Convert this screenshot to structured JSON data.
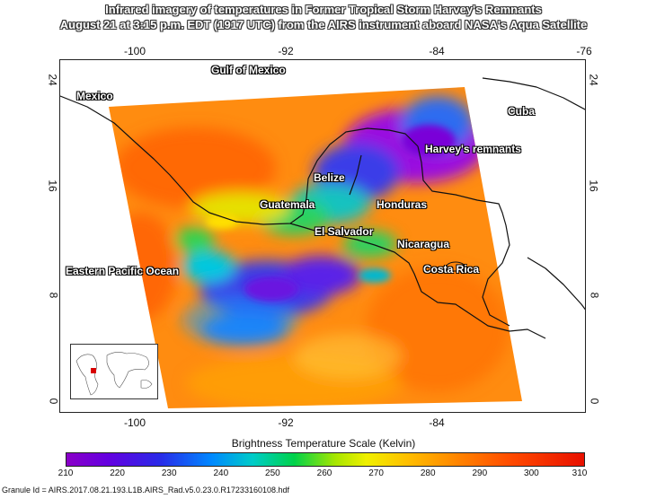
{
  "title": {
    "line1": "Infrared imagery of temperatures in Former Tropical Storm Harvey's Remnants",
    "line2": "August 21 at  3:15 p.m. EDT  (1917 UTC) from the AIRS instrument aboard NASA's Aqua Satellite"
  },
  "axes": {
    "top_lon_ticks": [
      "-100",
      "-92",
      "-84",
      "-76"
    ],
    "bottom_lon_ticks": [
      "-100",
      "-92",
      "-84"
    ],
    "left_lat_ticks": [
      "24",
      "16",
      "8",
      "0"
    ],
    "right_lat_ticks": [
      "24",
      "16",
      "8",
      "0"
    ]
  },
  "labels": {
    "gulf": "Gulf of Mexico",
    "mexico": "Mexico",
    "cuba": "Cuba",
    "harvey": "Harvey's remnants",
    "belize": "Belize",
    "guatemala": "Guatemala",
    "honduras": "Honduras",
    "el_salvador": "El Salvador",
    "nicaragua": "Nicaragua",
    "costa_rica": "Costa Rica",
    "pacific": "Eastern Pacific Ocean"
  },
  "scale": {
    "title": "Brightness Temperature Scale (Kelvin)",
    "ticks": [
      "210",
      "220",
      "230",
      "240",
      "250",
      "260",
      "270",
      "280",
      "290",
      "300",
      "310"
    ],
    "colors": [
      "#8a00c8",
      "#2a2ae8",
      "#00ccc8",
      "#00d24a",
      "#f0f000",
      "#ff8200",
      "#e81000"
    ]
  },
  "granule": "Granule Id = AIRS.2017.08.21.193.L1B.AIRS_Rad.v5.0.23.0.R17233160108.hdf"
}
